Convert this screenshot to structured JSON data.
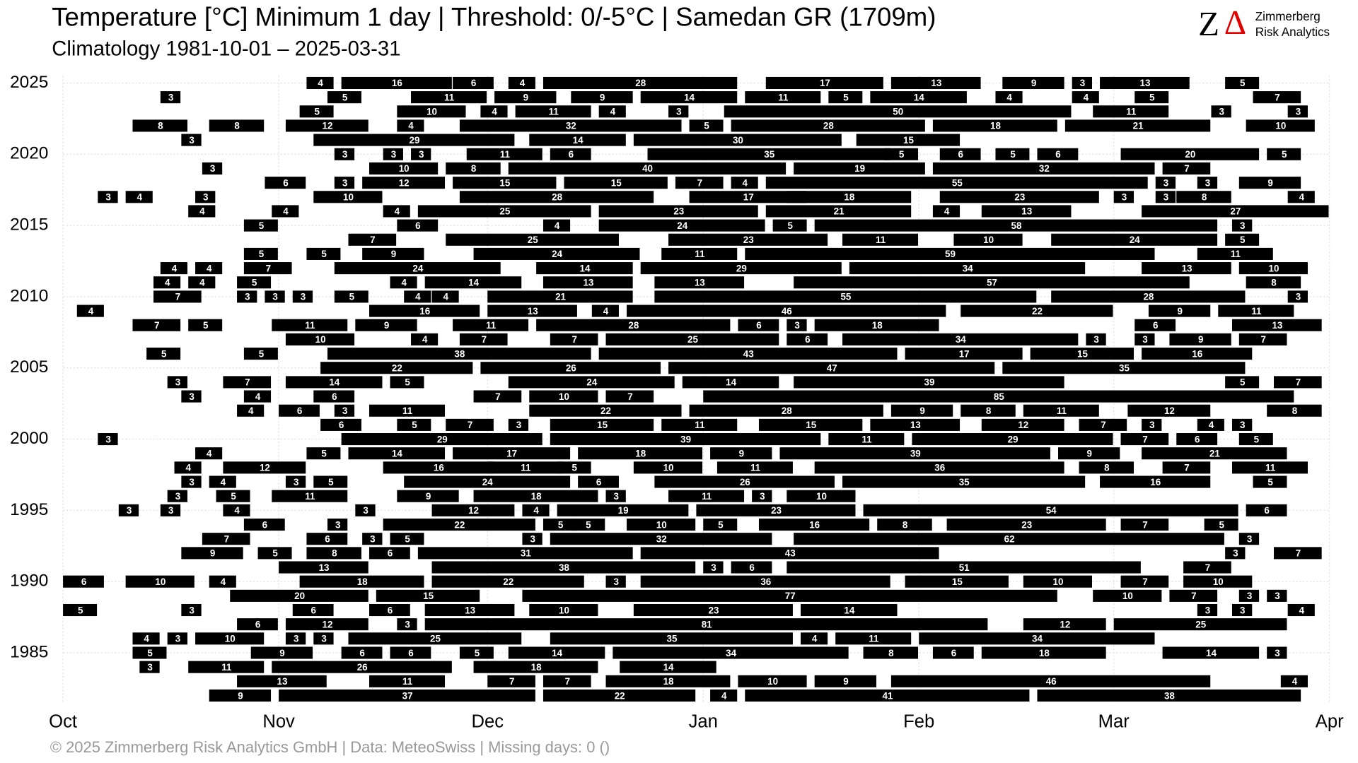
{
  "chart_data": {
    "type": "timeline",
    "title": "Temperature [°C] Minimum 1 day | Threshold: 0/-5°C | Samedan  GR (1709m)",
    "subtitle": "Climatology 1981-10-01 – 2025-03-31",
    "footer": "©  2025 Zimmerberg Risk Analytics GmbH | Data: MeteoSwiss | Missing days: 0 ()",
    "logo": {
      "mark_z": "Z",
      "mark_delta": "Δ",
      "line1": "Zimmerberg",
      "line2": "Risk Analytics"
    },
    "color": "#000000",
    "label_color": "#ffffff",
    "grid": true,
    "xlim": [
      0,
      182
    ],
    "xticks": [
      {
        "value": 0,
        "label": "Oct"
      },
      {
        "value": 31,
        "label": "Nov"
      },
      {
        "value": 61,
        "label": "Dec"
      },
      {
        "value": 92,
        "label": "Jan"
      },
      {
        "value": 123,
        "label": "Feb"
      },
      {
        "value": 151,
        "label": "Mar"
      },
      {
        "value": 182,
        "label": "Apr"
      }
    ],
    "ylim": [
      1981.5,
      2025.5
    ],
    "yticks": [
      1985,
      1990,
      1995,
      2000,
      2005,
      2010,
      2015,
      2020,
      2025
    ],
    "rows": [
      {
        "year": 2025,
        "starts": [
          35,
          40,
          56,
          64,
          69,
          101,
          119,
          135,
          145,
          149,
          167
        ],
        "lengths": [
          4,
          16,
          6,
          4,
          28,
          17,
          13,
          9,
          3,
          13,
          5
        ]
      },
      {
        "year": 2024,
        "starts": [
          14,
          38,
          50,
          62,
          73,
          83,
          98,
          110,
          116,
          134,
          145,
          154,
          171
        ],
        "lengths": [
          3,
          5,
          11,
          9,
          9,
          14,
          11,
          5,
          14,
          4,
          4,
          5,
          7
        ]
      },
      {
        "year": 2023,
        "starts": [
          34,
          48,
          60,
          65,
          77,
          87,
          95,
          148,
          165,
          176
        ],
        "lengths": [
          5,
          10,
          4,
          11,
          4,
          3,
          50,
          11,
          3,
          3
        ]
      },
      {
        "year": 2022,
        "starts": [
          10,
          21,
          32,
          48,
          57,
          90,
          96,
          125,
          144,
          170
        ],
        "lengths": [
          8,
          8,
          12,
          4,
          32,
          5,
          28,
          18,
          21,
          10
        ]
      },
      {
        "year": 2021,
        "starts": [
          17,
          36,
          67,
          82,
          114
        ],
        "lengths": [
          3,
          29,
          14,
          30,
          15
        ]
      },
      {
        "year": 2020,
        "starts": [
          39,
          46,
          50,
          58,
          70,
          84,
          118,
          126,
          134,
          140,
          152,
          173
        ],
        "lengths": [
          3,
          3,
          3,
          11,
          6,
          35,
          5,
          6,
          5,
          6,
          20,
          5
        ]
      },
      {
        "year": 2019,
        "starts": [
          20,
          44,
          55,
          64,
          105,
          125,
          158
        ],
        "lengths": [
          3,
          10,
          8,
          40,
          19,
          32,
          7
        ]
      },
      {
        "year": 2018,
        "starts": [
          29,
          39,
          43,
          56,
          72,
          88,
          96,
          101,
          157,
          163,
          169
        ],
        "lengths": [
          6,
          3,
          12,
          15,
          15,
          7,
          4,
          55,
          3,
          3,
          9
        ]
      },
      {
        "year": 2017,
        "starts": [
          5,
          9,
          19,
          36,
          57,
          90,
          104,
          126,
          151,
          157,
          160,
          176
        ],
        "lengths": [
          3,
          4,
          3,
          10,
          28,
          17,
          18,
          23,
          3,
          3,
          8,
          4
        ]
      },
      {
        "year": 2016,
        "starts": [
          18,
          30,
          46,
          51,
          77,
          101,
          125,
          132,
          155
        ],
        "lengths": [
          4,
          4,
          4,
          25,
          23,
          21,
          4,
          13,
          27
        ]
      },
      {
        "year": 2015,
        "starts": [
          26,
          48,
          69,
          77,
          102,
          108,
          168
        ],
        "lengths": [
          5,
          6,
          4,
          24,
          5,
          58,
          3
        ]
      },
      {
        "year": 2014,
        "starts": [
          41,
          55,
          87,
          112,
          128,
          142,
          167
        ],
        "lengths": [
          7,
          25,
          23,
          11,
          10,
          24,
          5
        ]
      },
      {
        "year": 2013,
        "starts": [
          26,
          35,
          43,
          59,
          86,
          98,
          163
        ],
        "lengths": [
          5,
          5,
          9,
          24,
          11,
          59,
          11
        ]
      },
      {
        "year": 2012,
        "starts": [
          14,
          19,
          26,
          39,
          68,
          83,
          113,
          155,
          169
        ],
        "lengths": [
          4,
          4,
          7,
          24,
          14,
          29,
          34,
          13,
          10
        ]
      },
      {
        "year": 2011,
        "starts": [
          13,
          18,
          25,
          47,
          52,
          69,
          85,
          105,
          170
        ],
        "lengths": [
          4,
          4,
          5,
          4,
          14,
          13,
          13,
          57,
          8
        ]
      },
      {
        "year": 2010,
        "starts": [
          13,
          25,
          29,
          33,
          39,
          49,
          53,
          61,
          85,
          142,
          176
        ],
        "lengths": [
          7,
          3,
          3,
          3,
          5,
          4,
          4,
          21,
          55,
          28,
          3
        ]
      },
      {
        "year": 2009,
        "starts": [
          2,
          44,
          61,
          76,
          81,
          129,
          156,
          166
        ],
        "lengths": [
          4,
          16,
          13,
          4,
          46,
          22,
          9,
          11
        ]
      },
      {
        "year": 2008,
        "starts": [
          10,
          18,
          30,
          42,
          56,
          68,
          97,
          104,
          108,
          154,
          168
        ],
        "lengths": [
          7,
          5,
          11,
          9,
          11,
          28,
          6,
          3,
          18,
          6,
          13
        ]
      },
      {
        "year": 2007,
        "starts": [
          32,
          50,
          57,
          70,
          78,
          104,
          112,
          147,
          154,
          159,
          169
        ],
        "lengths": [
          10,
          4,
          7,
          7,
          25,
          6,
          34,
          3,
          3,
          9,
          7
        ]
      },
      {
        "year": 2006,
        "starts": [
          12,
          26,
          38,
          77,
          121,
          139,
          155
        ],
        "lengths": [
          5,
          5,
          38,
          43,
          17,
          15,
          16
        ]
      },
      {
        "year": 2005,
        "starts": [
          37,
          60,
          87,
          135
        ],
        "lengths": [
          22,
          26,
          47,
          35
        ]
      },
      {
        "year": 2004,
        "starts": [
          15,
          23,
          32,
          47,
          64,
          89,
          105,
          167,
          174
        ],
        "lengths": [
          3,
          7,
          14,
          5,
          24,
          14,
          39,
          5,
          7
        ]
      },
      {
        "year": 2003,
        "starts": [
          17,
          26,
          36,
          59,
          67,
          78,
          92
        ],
        "lengths": [
          3,
          4,
          6,
          7,
          10,
          7,
          85
        ]
      },
      {
        "year": 2002,
        "starts": [
          25,
          31,
          39,
          44,
          67,
          90,
          119,
          129,
          138,
          153,
          173
        ],
        "lengths": [
          4,
          6,
          3,
          11,
          22,
          28,
          9,
          8,
          11,
          12,
          8
        ]
      },
      {
        "year": 2001,
        "starts": [
          37,
          48,
          55,
          64,
          70,
          86,
          100,
          116,
          132,
          146,
          155,
          163,
          168
        ],
        "lengths": [
          6,
          5,
          7,
          3,
          15,
          11,
          15,
          13,
          12,
          7,
          3,
          4,
          3
        ]
      },
      {
        "year": 2000,
        "starts": [
          5,
          40,
          70,
          110,
          122,
          152,
          160,
          169
        ],
        "lengths": [
          3,
          29,
          39,
          11,
          29,
          7,
          6,
          5
        ]
      },
      {
        "year": 1999,
        "starts": [
          19,
          35,
          41,
          56,
          74,
          93,
          103,
          143,
          155
        ],
        "lengths": [
          4,
          5,
          14,
          17,
          18,
          9,
          39,
          9,
          21
        ]
      },
      {
        "year": 1998,
        "starts": [
          16,
          23,
          46,
          61,
          71,
          82,
          94,
          108,
          146,
          158,
          168
        ],
        "lengths": [
          4,
          12,
          16,
          11,
          5,
          10,
          11,
          36,
          8,
          7,
          11
        ]
      },
      {
        "year": 1997,
        "starts": [
          17,
          21,
          32,
          36,
          49,
          74,
          85,
          112,
          149,
          171
        ],
        "lengths": [
          3,
          4,
          3,
          5,
          24,
          6,
          26,
          35,
          16,
          5
        ]
      },
      {
        "year": 1996,
        "starts": [
          15,
          22,
          30,
          48,
          59,
          78,
          87,
          99,
          104
        ],
        "lengths": [
          3,
          5,
          11,
          9,
          18,
          3,
          11,
          3,
          10
        ]
      },
      {
        "year": 1995,
        "starts": [
          8,
          14,
          23,
          42,
          53,
          66,
          71,
          91,
          115,
          170
        ],
        "lengths": [
          3,
          3,
          4,
          3,
          12,
          4,
          19,
          23,
          54,
          6
        ]
      },
      {
        "year": 1994,
        "starts": [
          26,
          38,
          46,
          69,
          73,
          81,
          92,
          100,
          117,
          127,
          152,
          164
        ],
        "lengths": [
          6,
          3,
          22,
          5,
          5,
          10,
          5,
          16,
          8,
          23,
          7,
          5
        ]
      },
      {
        "year": 1993,
        "starts": [
          20,
          35,
          43,
          47,
          66,
          70,
          105,
          169
        ],
        "lengths": [
          7,
          6,
          3,
          5,
          3,
          32,
          62,
          3
        ]
      },
      {
        "year": 1992,
        "starts": [
          17,
          28,
          35,
          44,
          51,
          83,
          167,
          174
        ],
        "lengths": [
          9,
          5,
          8,
          6,
          31,
          43,
          3,
          7
        ]
      },
      {
        "year": 1991,
        "starts": [
          31,
          53,
          92,
          96,
          104,
          161
        ],
        "lengths": [
          13,
          38,
          3,
          6,
          51,
          7
        ]
      },
      {
        "year": 1990,
        "starts": [
          0,
          9,
          21,
          34,
          53,
          78,
          83,
          121,
          138,
          152,
          161
        ],
        "lengths": [
          6,
          10,
          4,
          18,
          22,
          3,
          36,
          15,
          10,
          7,
          10
        ]
      },
      {
        "year": 1989,
        "starts": [
          24,
          45,
          66,
          148,
          159,
          169,
          173
        ],
        "lengths": [
          20,
          15,
          77,
          10,
          7,
          3,
          3
        ]
      },
      {
        "year": 1988,
        "starts": [
          0,
          17,
          33,
          44,
          52,
          67,
          82,
          106,
          163,
          168,
          176
        ],
        "lengths": [
          5,
          3,
          6,
          6,
          13,
          10,
          23,
          14,
          3,
          3,
          4
        ]
      },
      {
        "year": 1987,
        "starts": [
          25,
          32,
          48,
          52,
          138,
          151
        ],
        "lengths": [
          6,
          12,
          3,
          81,
          12,
          25
        ]
      },
      {
        "year": 1986,
        "starts": [
          10,
          15,
          19,
          32,
          36,
          41,
          70,
          106,
          111,
          123
        ],
        "lengths": [
          4,
          3,
          10,
          3,
          3,
          25,
          35,
          4,
          11,
          34
        ]
      },
      {
        "year": 1985,
        "starts": [
          10,
          27,
          40,
          47,
          57,
          64,
          79,
          115,
          125,
          132,
          158,
          173
        ],
        "lengths": [
          5,
          9,
          6,
          6,
          5,
          14,
          34,
          8,
          6,
          18,
          14,
          3
        ]
      },
      {
        "year": 1984,
        "starts": [
          11,
          18,
          30,
          59,
          80
        ],
        "lengths": [
          3,
          11,
          26,
          18,
          14
        ]
      },
      {
        "year": 1983,
        "starts": [
          25,
          44,
          61,
          69,
          78,
          97,
          108,
          119,
          175
        ],
        "lengths": [
          13,
          11,
          7,
          7,
          18,
          10,
          9,
          46,
          4
        ]
      },
      {
        "year": 1982,
        "starts": [
          21,
          31,
          69,
          93,
          98,
          140
        ],
        "lengths": [
          9,
          37,
          22,
          4,
          41,
          38
        ]
      }
    ]
  }
}
